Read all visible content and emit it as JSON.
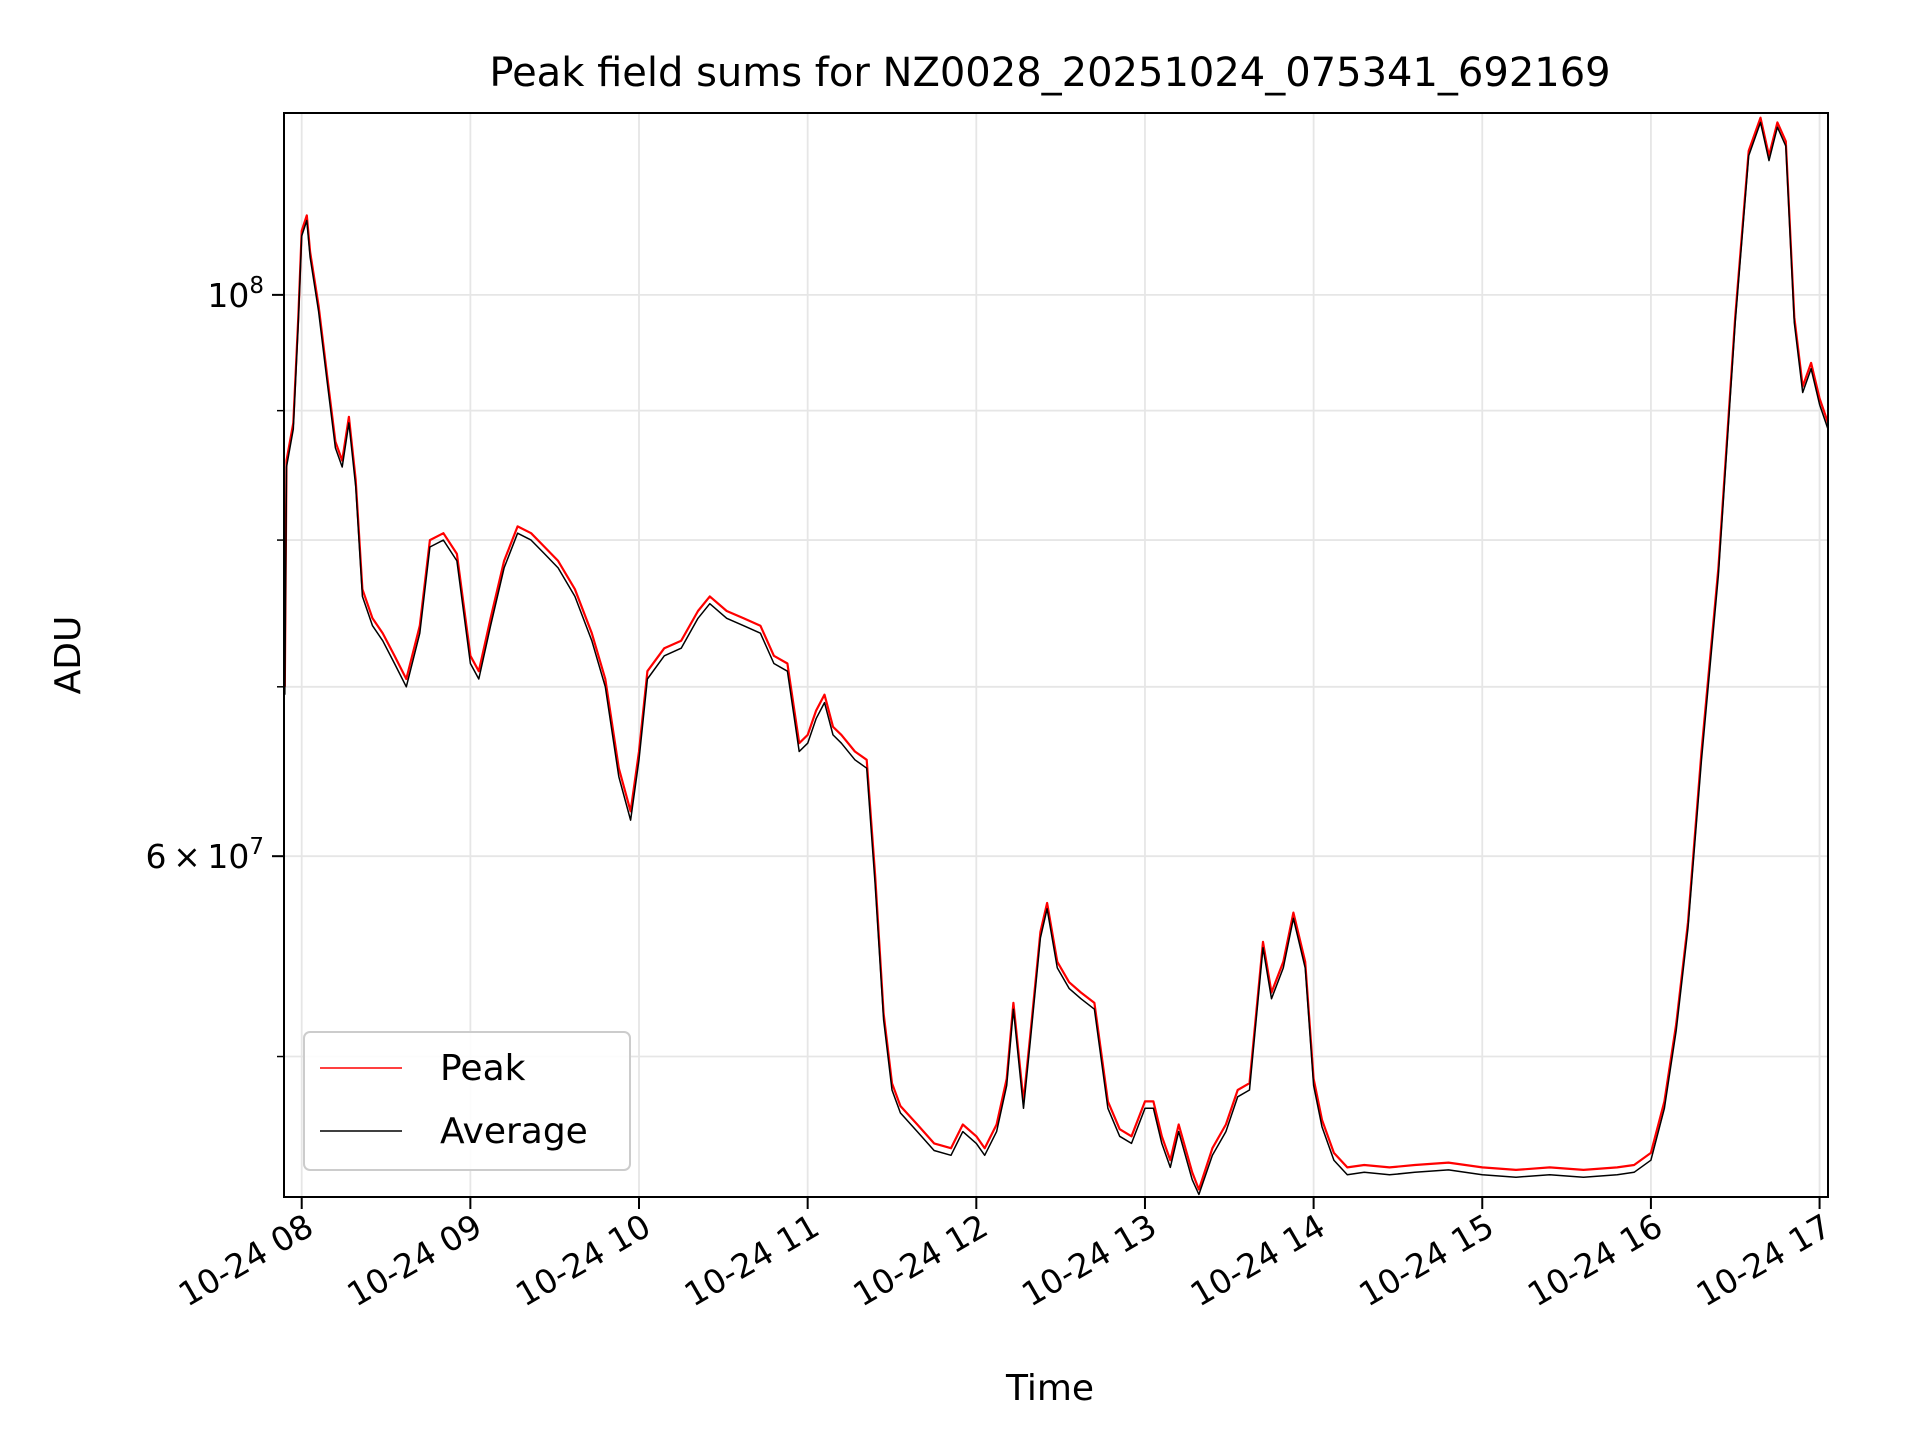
{
  "chart_data": {
    "type": "line",
    "title": "Peak field sums for NZ0028_20251024_075341_692169",
    "xlabel": "Time",
    "ylabel": "ADU",
    "x_tick_labels": [
      "10-24 08",
      "10-24 09",
      "10-24 10",
      "10-24 11",
      "10-24 12",
      "10-24 13",
      "10-24 14",
      "10-24 15",
      "10-24 16",
      "10-24 17"
    ],
    "x_tick_values": [
      8,
      9,
      10,
      11,
      12,
      13,
      14,
      15,
      16,
      17
    ],
    "xlim": [
      7.895,
      17.05
    ],
    "ylim": [
      44000000,
      118000000
    ],
    "yscale": "log",
    "y_major_ticks": [
      {
        "value": 100000000,
        "base": "10",
        "exp": "8"
      },
      {
        "value": 60000000,
        "mant": "6",
        "base": "10",
        "exp": "7"
      }
    ],
    "y_minor_ticks": [
      50000000,
      70000000,
      80000000,
      90000000
    ],
    "grid": true,
    "legend_position": "lower-left",
    "colors": {
      "peak": "#ff0000",
      "average": "#000000"
    },
    "series": [
      {
        "name": "Peak",
        "color": "#ff0000",
        "points": [
          [
            7.9,
            70000000
          ],
          [
            7.91,
            86000000
          ],
          [
            7.95,
            89000000
          ],
          [
            7.98,
            98000000
          ],
          [
            8.0,
            106000000
          ],
          [
            8.03,
            107500000
          ],
          [
            8.05,
            104000000
          ],
          [
            8.1,
            99000000
          ],
          [
            8.15,
            93000000
          ],
          [
            8.2,
            87500000
          ],
          [
            8.24,
            86000000
          ],
          [
            8.28,
            89500000
          ],
          [
            8.32,
            84500000
          ],
          [
            8.36,
            76500000
          ],
          [
            8.42,
            74500000
          ],
          [
            8.48,
            73500000
          ],
          [
            8.55,
            72000000
          ],
          [
            8.62,
            70500000
          ],
          [
            8.7,
            74000000
          ],
          [
            8.76,
            80000000
          ],
          [
            8.84,
            80500000
          ],
          [
            8.92,
            79000000
          ],
          [
            9.0,
            72000000
          ],
          [
            9.05,
            71000000
          ],
          [
            9.12,
            74500000
          ],
          [
            9.2,
            78500000
          ],
          [
            9.28,
            81000000
          ],
          [
            9.36,
            80500000
          ],
          [
            9.44,
            79500000
          ],
          [
            9.52,
            78500000
          ],
          [
            9.62,
            76500000
          ],
          [
            9.72,
            73500000
          ],
          [
            9.8,
            70500000
          ],
          [
            9.88,
            65000000
          ],
          [
            9.95,
            62500000
          ],
          [
            10.0,
            66000000
          ],
          [
            10.05,
            71000000
          ],
          [
            10.15,
            72500000
          ],
          [
            10.25,
            73000000
          ],
          [
            10.35,
            75000000
          ],
          [
            10.42,
            76000000
          ],
          [
            10.52,
            75000000
          ],
          [
            10.62,
            74500000
          ],
          [
            10.72,
            74000000
          ],
          [
            10.8,
            72000000
          ],
          [
            10.88,
            71500000
          ],
          [
            10.95,
            66500000
          ],
          [
            11.0,
            67000000
          ],
          [
            11.05,
            68500000
          ],
          [
            11.1,
            69500000
          ],
          [
            11.15,
            67500000
          ],
          [
            11.2,
            67000000
          ],
          [
            11.28,
            66000000
          ],
          [
            11.35,
            65500000
          ],
          [
            11.4,
            59000000
          ],
          [
            11.45,
            52000000
          ],
          [
            11.5,
            48800000
          ],
          [
            11.55,
            47800000
          ],
          [
            11.65,
            47000000
          ],
          [
            11.75,
            46200000
          ],
          [
            11.85,
            46000000
          ],
          [
            11.92,
            47000000
          ],
          [
            12.0,
            46500000
          ],
          [
            12.05,
            46000000
          ],
          [
            12.12,
            47000000
          ],
          [
            12.18,
            49000000
          ],
          [
            12.22,
            52500000
          ],
          [
            12.28,
            48000000
          ],
          [
            12.32,
            51000000
          ],
          [
            12.38,
            56000000
          ],
          [
            12.42,
            57500000
          ],
          [
            12.48,
            54500000
          ],
          [
            12.55,
            53500000
          ],
          [
            12.62,
            53000000
          ],
          [
            12.7,
            52500000
          ],
          [
            12.78,
            48000000
          ],
          [
            12.85,
            46800000
          ],
          [
            12.92,
            46500000
          ],
          [
            13.0,
            48000000
          ],
          [
            13.05,
            48000000
          ],
          [
            13.1,
            46500000
          ],
          [
            13.15,
            45500000
          ],
          [
            13.2,
            47000000
          ],
          [
            13.28,
            45000000
          ],
          [
            13.32,
            44300000
          ],
          [
            13.4,
            46000000
          ],
          [
            13.48,
            47000000
          ],
          [
            13.55,
            48500000
          ],
          [
            13.62,
            48800000
          ],
          [
            13.7,
            55500000
          ],
          [
            13.75,
            53000000
          ],
          [
            13.82,
            54500000
          ],
          [
            13.88,
            57000000
          ],
          [
            13.95,
            54500000
          ],
          [
            14.0,
            49000000
          ],
          [
            14.05,
            47200000
          ],
          [
            14.12,
            45800000
          ],
          [
            14.2,
            45200000
          ],
          [
            14.3,
            45300000
          ],
          [
            14.45,
            45200000
          ],
          [
            14.6,
            45300000
          ],
          [
            14.8,
            45400000
          ],
          [
            15.0,
            45200000
          ],
          [
            15.2,
            45100000
          ],
          [
            15.4,
            45200000
          ],
          [
            15.6,
            45100000
          ],
          [
            15.8,
            45200000
          ],
          [
            15.9,
            45300000
          ],
          [
            16.0,
            45800000
          ],
          [
            16.08,
            48000000
          ],
          [
            16.15,
            51500000
          ],
          [
            16.22,
            56500000
          ],
          [
            16.3,
            66000000
          ],
          [
            16.4,
            78000000
          ],
          [
            16.5,
            98000000
          ],
          [
            16.58,
            114000000
          ],
          [
            16.65,
            117500000
          ],
          [
            16.7,
            113500000
          ],
          [
            16.75,
            117000000
          ],
          [
            16.8,
            115000000
          ],
          [
            16.85,
            98000000
          ],
          [
            16.9,
            92000000
          ],
          [
            16.95,
            94000000
          ],
          [
            17.0,
            91000000
          ],
          [
            17.05,
            89000000
          ]
        ]
      },
      {
        "name": "Average",
        "color": "#000000",
        "points": [
          [
            7.9,
            69500000
          ],
          [
            7.91,
            85500000
          ],
          [
            7.95,
            88500000
          ],
          [
            7.98,
            97500000
          ],
          [
            8.0,
            105500000
          ],
          [
            8.03,
            107000000
          ],
          [
            8.05,
            103500000
          ],
          [
            8.1,
            98500000
          ],
          [
            8.15,
            92500000
          ],
          [
            8.2,
            87000000
          ],
          [
            8.24,
            85500000
          ],
          [
            8.28,
            89000000
          ],
          [
            8.32,
            84000000
          ],
          [
            8.36,
            76000000
          ],
          [
            8.42,
            74000000
          ],
          [
            8.48,
            73000000
          ],
          [
            8.55,
            71500000
          ],
          [
            8.62,
            70000000
          ],
          [
            8.7,
            73500000
          ],
          [
            8.76,
            79500000
          ],
          [
            8.84,
            80000000
          ],
          [
            8.92,
            78500000
          ],
          [
            9.0,
            71500000
          ],
          [
            9.05,
            70500000
          ],
          [
            9.12,
            74000000
          ],
          [
            9.2,
            78000000
          ],
          [
            9.28,
            80500000
          ],
          [
            9.36,
            80000000
          ],
          [
            9.44,
            79000000
          ],
          [
            9.52,
            78000000
          ],
          [
            9.62,
            76000000
          ],
          [
            9.72,
            73000000
          ],
          [
            9.8,
            70000000
          ],
          [
            9.88,
            64500000
          ],
          [
            9.95,
            62000000
          ],
          [
            10.0,
            65500000
          ],
          [
            10.05,
            70500000
          ],
          [
            10.15,
            72000000
          ],
          [
            10.25,
            72500000
          ],
          [
            10.35,
            74500000
          ],
          [
            10.42,
            75500000
          ],
          [
            10.52,
            74500000
          ],
          [
            10.62,
            74000000
          ],
          [
            10.72,
            73500000
          ],
          [
            10.8,
            71500000
          ],
          [
            10.88,
            71000000
          ],
          [
            10.95,
            66000000
          ],
          [
            11.0,
            66500000
          ],
          [
            11.05,
            68000000
          ],
          [
            11.1,
            69000000
          ],
          [
            11.15,
            67000000
          ],
          [
            11.2,
            66500000
          ],
          [
            11.28,
            65500000
          ],
          [
            11.35,
            65000000
          ],
          [
            11.4,
            58500000
          ],
          [
            11.45,
            51700000
          ],
          [
            11.5,
            48500000
          ],
          [
            11.55,
            47500000
          ],
          [
            11.65,
            46700000
          ],
          [
            11.75,
            45900000
          ],
          [
            11.85,
            45700000
          ],
          [
            11.92,
            46700000
          ],
          [
            12.0,
            46200000
          ],
          [
            12.05,
            45700000
          ],
          [
            12.12,
            46700000
          ],
          [
            12.18,
            48700000
          ],
          [
            12.22,
            52200000
          ],
          [
            12.28,
            47700000
          ],
          [
            12.32,
            50700000
          ],
          [
            12.38,
            55700000
          ],
          [
            12.42,
            57200000
          ],
          [
            12.48,
            54200000
          ],
          [
            12.55,
            53200000
          ],
          [
            12.62,
            52700000
          ],
          [
            12.7,
            52200000
          ],
          [
            12.78,
            47700000
          ],
          [
            12.85,
            46500000
          ],
          [
            12.92,
            46200000
          ],
          [
            13.0,
            47700000
          ],
          [
            13.05,
            47700000
          ],
          [
            13.1,
            46200000
          ],
          [
            13.15,
            45200000
          ],
          [
            13.2,
            46700000
          ],
          [
            13.28,
            44700000
          ],
          [
            13.32,
            44100000
          ],
          [
            13.4,
            45700000
          ],
          [
            13.48,
            46700000
          ],
          [
            13.55,
            48200000
          ],
          [
            13.62,
            48500000
          ],
          [
            13.7,
            55200000
          ],
          [
            13.75,
            52700000
          ],
          [
            13.82,
            54200000
          ],
          [
            13.88,
            56700000
          ],
          [
            13.95,
            54200000
          ],
          [
            14.0,
            48700000
          ],
          [
            14.05,
            46900000
          ],
          [
            14.12,
            45500000
          ],
          [
            14.2,
            44900000
          ],
          [
            14.3,
            45000000
          ],
          [
            14.45,
            44900000
          ],
          [
            14.6,
            45000000
          ],
          [
            14.8,
            45100000
          ],
          [
            15.0,
            44900000
          ],
          [
            15.2,
            44800000
          ],
          [
            15.4,
            44900000
          ],
          [
            15.6,
            44800000
          ],
          [
            15.8,
            44900000
          ],
          [
            15.9,
            45000000
          ],
          [
            16.0,
            45500000
          ],
          [
            16.08,
            47700000
          ],
          [
            16.15,
            51200000
          ],
          [
            16.22,
            56200000
          ],
          [
            16.3,
            65500000
          ],
          [
            16.4,
            77500000
          ],
          [
            16.5,
            97500000
          ],
          [
            16.58,
            113500000
          ],
          [
            16.65,
            117000000
          ],
          [
            16.7,
            113000000
          ],
          [
            16.75,
            116500000
          ],
          [
            16.8,
            114500000
          ],
          [
            16.85,
            97500000
          ],
          [
            16.9,
            91500000
          ],
          [
            16.95,
            93500000
          ],
          [
            17.0,
            90500000
          ],
          [
            17.05,
            88500000
          ]
        ]
      }
    ]
  }
}
